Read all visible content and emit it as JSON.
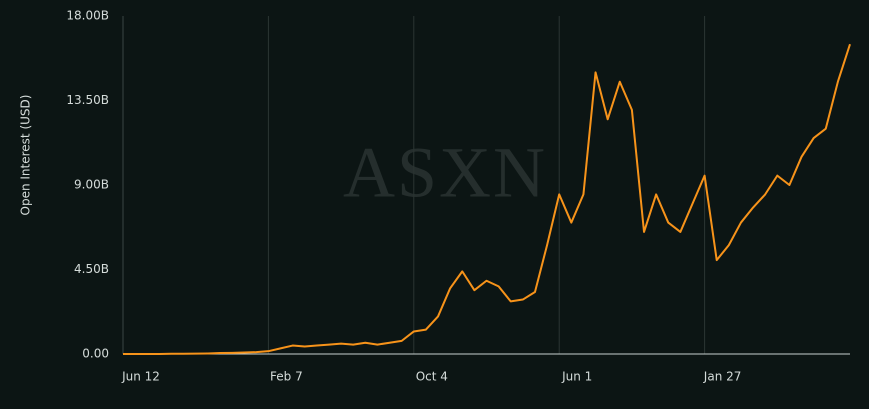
{
  "chart_data": {
    "type": "line",
    "watermark": "ASXN",
    "y_label": "Open Interest (USD)",
    "categories": [
      "Jun 12",
      null,
      null,
      null,
      null,
      null,
      null,
      null,
      null,
      null,
      null,
      null,
      "Feb 7",
      null,
      null,
      null,
      null,
      null,
      null,
      null,
      null,
      null,
      null,
      null,
      "Oct 4",
      null,
      null,
      null,
      null,
      null,
      null,
      null,
      null,
      null,
      null,
      null,
      "Jun 1",
      null,
      null,
      null,
      null,
      null,
      null,
      null,
      null,
      null,
      null,
      null,
      "Jan 27",
      null,
      null,
      null,
      null,
      null,
      null,
      null,
      null,
      null,
      null,
      null,
      null
    ],
    "series": [
      {
        "name": "Open Interest",
        "color": "#f7931a",
        "values": [
          0,
          0,
          0,
          0,
          10000000.0,
          10000000.0,
          20000000.0,
          30000000.0,
          50000000.0,
          60000000.0,
          80000000.0,
          100000000.0,
          150000000.0,
          300000000.0,
          450000000.0,
          400000000.0,
          450000000.0,
          500000000.0,
          550000000.0,
          500000000.0,
          600000000.0,
          500000000.0,
          600000000.0,
          700000000.0,
          1200000000.0,
          1300000000.0,
          2000000000.0,
          3500000000.0,
          4400000000.0,
          3400000000.0,
          3900000000.0,
          3600000000.0,
          2800000000.0,
          2900000000.0,
          3300000000.0,
          5800000000.0,
          8500000000.0,
          7000000000.0,
          8500000000.0,
          15000000000.0,
          12500000000.0,
          14500000000.0,
          13000000000.0,
          6500000000.0,
          8500000000.0,
          7000000000.0,
          6500000000.0,
          8000000000.0,
          9500000000.0,
          5000000000.0,
          5800000000.0,
          7000000000.0,
          7800000000.0,
          8500000000.0,
          9500000000.0,
          9000000000.0,
          10500000000.0,
          11500000000.0,
          12000000000.0,
          14500000000.0,
          16500000000.0
        ]
      }
    ],
    "ylim": [
      0,
      18000000000
    ],
    "yticks": [
      {
        "value": 0,
        "label": "0.00"
      },
      {
        "value": 4500000000,
        "label": "4.50B"
      },
      {
        "value": 9000000000,
        "label": "9.00B"
      },
      {
        "value": 13500000000,
        "label": "13.50B"
      },
      {
        "value": 18000000000,
        "label": "18.00B"
      }
    ],
    "grid": true
  }
}
